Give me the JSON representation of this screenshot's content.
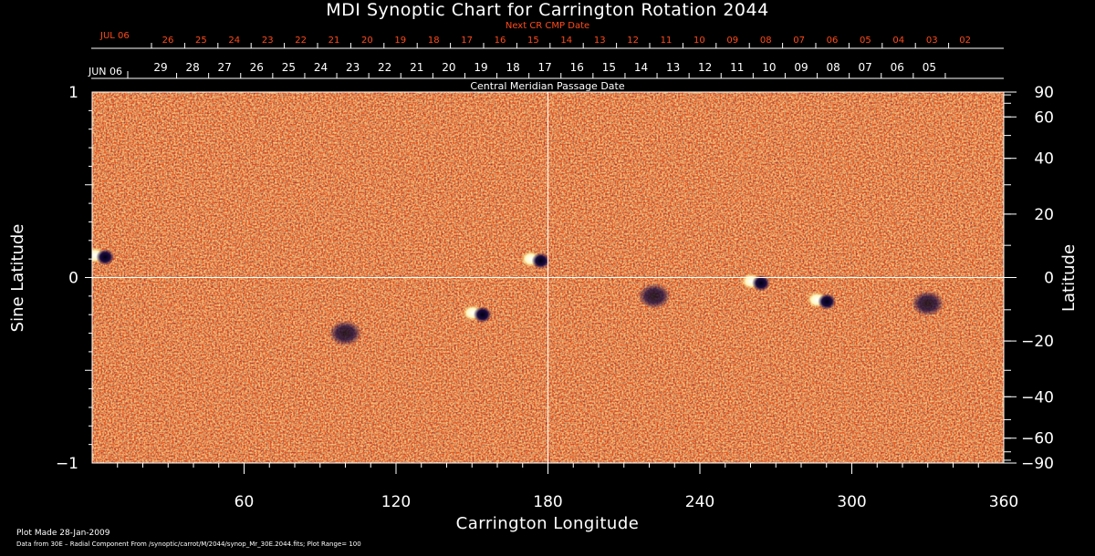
{
  "chart_data": {
    "type": "heatmap",
    "title": "MDI Synoptic Chart for Carrington Rotation 2044",
    "xlabel": "Carrington Longitude",
    "ylabel_left": "Sine Latitude",
    "ylabel_right": "Latitude",
    "xlim": [
      0,
      360
    ],
    "ylim": [
      -1,
      1
    ],
    "x_ticks": [
      60,
      120,
      180,
      240,
      300,
      360
    ],
    "y_ticks_left": [
      "1",
      "0",
      "−1"
    ],
    "y_ticks_left_values": [
      1,
      0,
      -1
    ],
    "y_ticks_right_labels": [
      "90",
      "60",
      "40",
      "20",
      "0",
      "−20",
      "−40",
      "−60",
      "−90"
    ],
    "y_ticks_right_deg": [
      90,
      60,
      40,
      20,
      0,
      -20,
      -40,
      -60,
      -90
    ],
    "top_axis_label": "Central Meridian Passage Date",
    "top_axis_start": "JUN 06",
    "top_axis_dates": [
      "29",
      "28",
      "27",
      "26",
      "25",
      "24",
      "23",
      "22",
      "21",
      "20",
      "19",
      "18",
      "17",
      "16",
      "15",
      "14",
      "13",
      "12",
      "11",
      "10",
      "09",
      "08",
      "07",
      "06",
      "05"
    ],
    "next_axis_label": "Next CR CMP Date",
    "next_axis_start": "JUL 06",
    "next_axis_dates": [
      "26",
      "25",
      "24",
      "23",
      "22",
      "21",
      "20",
      "19",
      "18",
      "17",
      "16",
      "15",
      "14",
      "13",
      "12",
      "11",
      "10",
      "09",
      "08",
      "07",
      "06",
      "05",
      "04",
      "03",
      "02"
    ],
    "grid": "crosshair at longitude 180 and sine latitude 0",
    "colormap": [
      "#1c0f4a",
      "#e23a0a",
      "#f0641a",
      "#ffd04a",
      "#ffffff"
    ],
    "plot_range": 100,
    "active_regions": [
      {
        "lon": 3,
        "sinlat": 0.12,
        "polarity": "mixed"
      },
      {
        "lon": 175,
        "sinlat": 0.1,
        "polarity": "mixed"
      },
      {
        "lon": 152,
        "sinlat": -0.19,
        "polarity": "mixed"
      },
      {
        "lon": 262,
        "sinlat": -0.02,
        "polarity": "mixed"
      },
      {
        "lon": 288,
        "sinlat": -0.12,
        "polarity": "mixed"
      },
      {
        "lon": 330,
        "sinlat": -0.14,
        "polarity": "negative"
      },
      {
        "lon": 222,
        "sinlat": -0.1,
        "polarity": "negative"
      },
      {
        "lon": 100,
        "sinlat": -0.3,
        "polarity": "negative"
      }
    ]
  },
  "footer": {
    "plot_made": "Plot Made 28-Jan-2009",
    "source": "Data from 30E – Radial Component From /synoptic/carrot/M/2044/synop_Mr_30E.2044.fits; Plot Range=  100"
  },
  "colors": {
    "background": "#000000",
    "foreground": "#ffffff",
    "next_axis": "#ff4a1a",
    "map_base": "#e8551a"
  }
}
